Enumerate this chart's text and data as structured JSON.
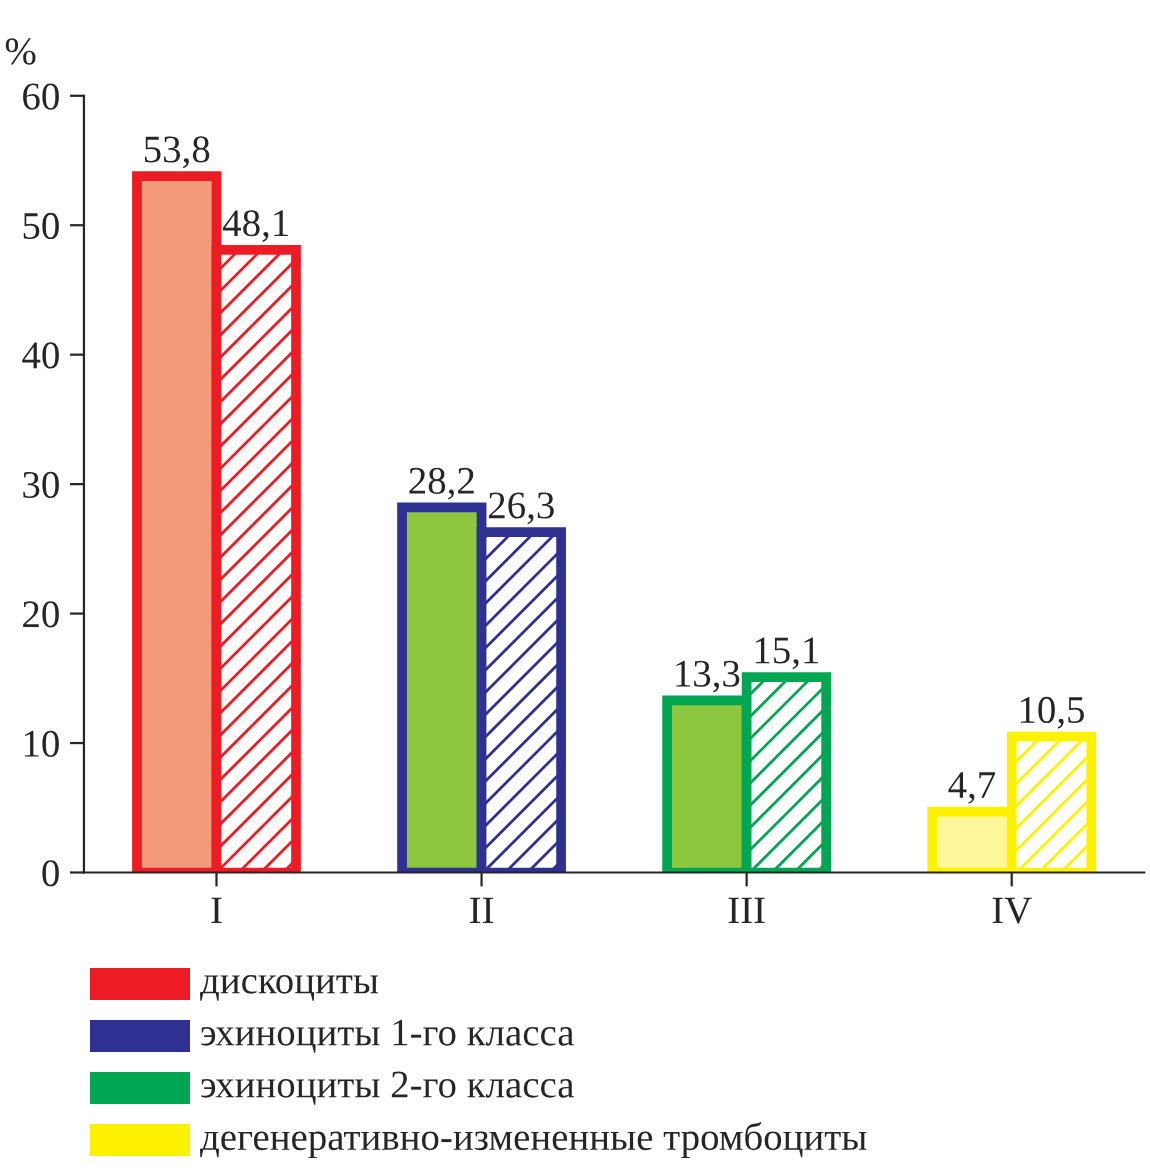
{
  "chart_data": {
    "type": "bar",
    "ylabel": "%",
    "categories": [
      "I",
      "II",
      "III",
      "IV"
    ],
    "series": [
      {
        "colors": [
          "#f4997a",
          "#8dc63f",
          "#8dc63f",
          "#fff799"
        ],
        "values": [
          53.8,
          28.2,
          13.3,
          4.7
        ],
        "value_labels": [
          "53,8",
          "28,2",
          "13,3",
          "4,7"
        ]
      },
      {
        "colors": [
          "#ed1c24",
          "#2e3192",
          "#00a651",
          "#fff200"
        ],
        "values": [
          48.1,
          26.3,
          15.1,
          10.5
        ],
        "value_labels": [
          "48,1",
          "26,3",
          "15,1",
          "10,5"
        ]
      }
    ],
    "ylim": [
      0,
      60
    ],
    "yticks": [
      0,
      10,
      20,
      30,
      40,
      50,
      60
    ],
    "grid": false,
    "annotations": [
      "дискоциты",
      "эхиноциты 1-го класса",
      "эхиноциты 2-го класса",
      "дегенеративно-измененные тромбоциты"
    ]
  }
}
